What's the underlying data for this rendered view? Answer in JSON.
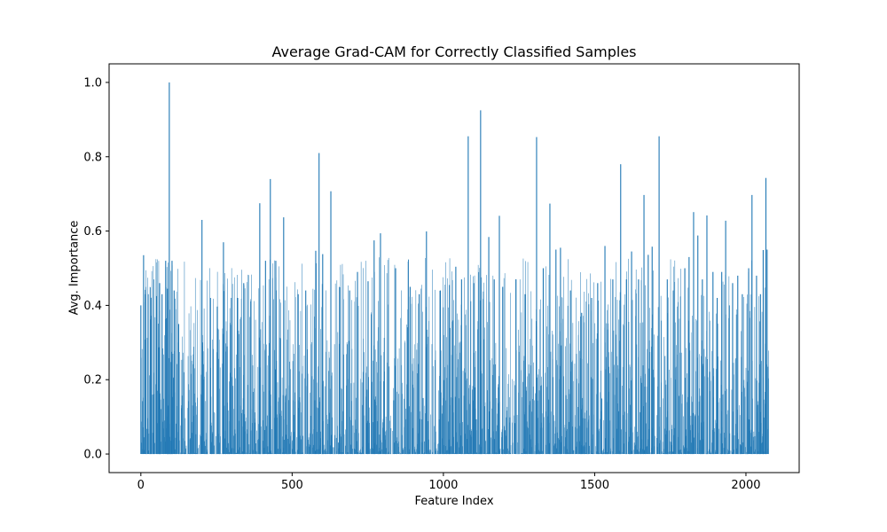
{
  "chart_data": {
    "type": "bar",
    "title": "Average Grad-CAM for Correctly Classified Samples",
    "xlabel": "Feature Index",
    "ylabel": "Avg. Importance",
    "bar_color": "#1f77b4",
    "spine_color": "#000000",
    "text_color": "#000000",
    "background_color": "#ffffff",
    "n_features": 2076,
    "axes": {
      "xlim": [
        -105,
        2176
      ],
      "ylim": [
        -0.05,
        1.05
      ],
      "grid": false,
      "legend": "none",
      "xticks": {
        "values": [
          0,
          500,
          1000,
          1500,
          2000
        ],
        "labels": [
          "0",
          "500",
          "1000",
          "1500",
          "2000"
        ]
      },
      "yticks": {
        "values": [
          0.0,
          0.2,
          0.4,
          0.6,
          0.8,
          1.0
        ],
        "labels": [
          "0.0",
          "0.2",
          "0.4",
          "0.6",
          "0.8",
          "1.0"
        ]
      }
    },
    "peaks": [
      [
        0,
        0.4
      ],
      [
        9,
        0.535
      ],
      [
        15,
        0.43
      ],
      [
        24,
        0.43
      ],
      [
        33,
        0.42
      ],
      [
        42,
        0.47
      ],
      [
        52,
        0.425
      ],
      [
        62,
        0.46
      ],
      [
        70,
        0.43
      ],
      [
        82,
        0.52
      ],
      [
        88,
        0.445
      ],
      [
        94,
        1.0
      ],
      [
        103,
        0.52
      ],
      [
        110,
        0.44
      ],
      [
        125,
        0.35
      ],
      [
        202,
        0.63
      ],
      [
        230,
        0.42
      ],
      [
        273,
        0.57
      ],
      [
        299,
        0.42
      ],
      [
        320,
        0.42
      ],
      [
        340,
        0.46
      ],
      [
        393,
        0.675
      ],
      [
        412,
        0.52
      ],
      [
        428,
        0.74
      ],
      [
        446,
        0.52
      ],
      [
        472,
        0.637
      ],
      [
        520,
        0.43
      ],
      [
        545,
        0.44
      ],
      [
        578,
        0.547
      ],
      [
        589,
        0.81
      ],
      [
        601,
        0.538
      ],
      [
        628,
        0.707
      ],
      [
        657,
        0.449
      ],
      [
        690,
        0.44
      ],
      [
        716,
        0.49
      ],
      [
        751,
        0.465
      ],
      [
        771,
        0.575
      ],
      [
        792,
        0.594
      ],
      [
        842,
        0.5
      ],
      [
        890,
        0.45
      ],
      [
        920,
        0.43
      ],
      [
        944,
        0.599
      ],
      [
        990,
        0.44
      ],
      [
        1020,
        0.455
      ],
      [
        1041,
        0.504
      ],
      [
        1060,
        0.47
      ],
      [
        1082,
        0.855
      ],
      [
        1100,
        0.46
      ],
      [
        1123,
        0.925
      ],
      [
        1150,
        0.584
      ],
      [
        1168,
        0.47
      ],
      [
        1185,
        0.641
      ],
      [
        1196,
        0.45
      ],
      [
        1240,
        0.47
      ],
      [
        1270,
        0.43
      ],
      [
        1308,
        0.853
      ],
      [
        1330,
        0.5
      ],
      [
        1352,
        0.674
      ],
      [
        1372,
        0.55
      ],
      [
        1387,
        0.555
      ],
      [
        1420,
        0.44
      ],
      [
        1457,
        0.38
      ],
      [
        1490,
        0.42
      ],
      [
        1510,
        0.46
      ],
      [
        1534,
        0.56
      ],
      [
        1560,
        0.47
      ],
      [
        1586,
        0.78
      ],
      [
        1605,
        0.47
      ],
      [
        1622,
        0.545
      ],
      [
        1645,
        0.47
      ],
      [
        1663,
        0.697
      ],
      [
        1677,
        0.536
      ],
      [
        1690,
        0.558
      ],
      [
        1713,
        0.855
      ],
      [
        1740,
        0.47
      ],
      [
        1760,
        0.44
      ],
      [
        1798,
        0.5
      ],
      [
        1812,
        0.53
      ],
      [
        1827,
        0.651
      ],
      [
        1841,
        0.588
      ],
      [
        1856,
        0.47
      ],
      [
        1871,
        0.642
      ],
      [
        1891,
        0.49
      ],
      [
        1905,
        0.42
      ],
      [
        1920,
        0.49
      ],
      [
        1933,
        0.628
      ],
      [
        1945,
        0.4
      ],
      [
        1956,
        0.46
      ],
      [
        1973,
        0.48
      ],
      [
        1988,
        0.43
      ],
      [
        2009,
        0.5
      ],
      [
        2020,
        0.697
      ],
      [
        2035,
        0.48
      ],
      [
        2048,
        0.43
      ],
      [
        2057,
        0.549
      ],
      [
        2066,
        0.743
      ],
      [
        2070,
        0.55
      ]
    ],
    "background": {
      "seed": 7,
      "max": 0.53,
      "exponent": 2.0,
      "zero_run_probability": 0.06,
      "zero_run_max": 3
    }
  }
}
